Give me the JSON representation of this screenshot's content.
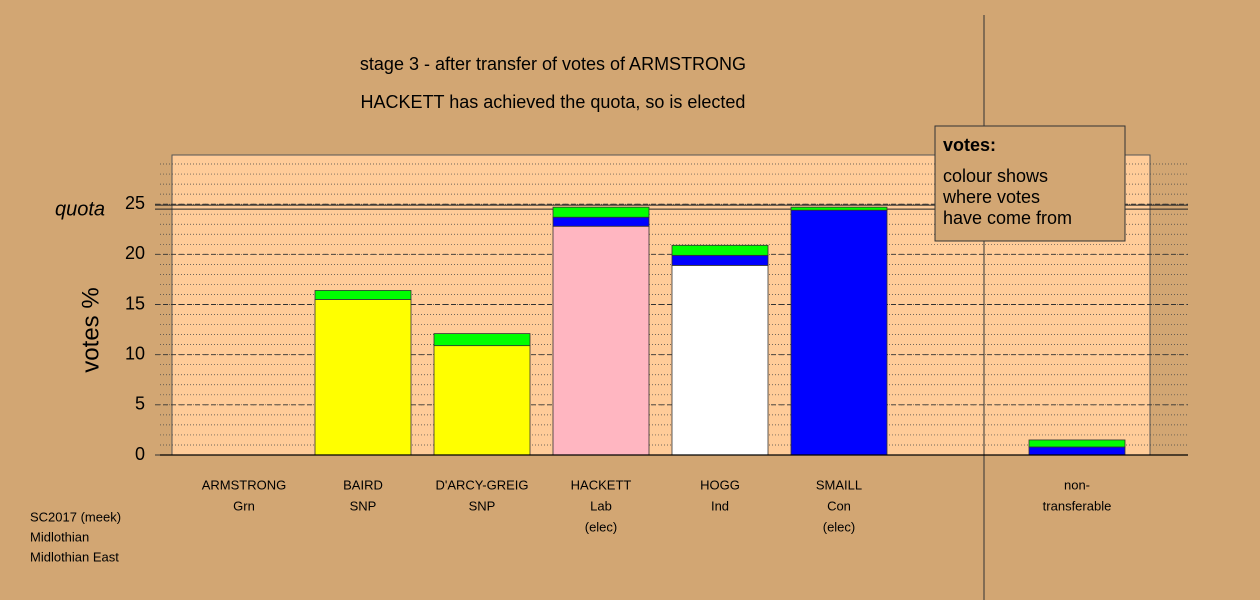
{
  "chart_data": {
    "type": "bar",
    "title": "stage 3 - after transfer of votes of ARMSTRONG",
    "subtitle": "HACKETT has achieved the quota, so is elected",
    "y_label": "votes %",
    "categories": [
      "ARMSTRONG",
      "BAIRD",
      "D'ARCY-GREIG",
      "HACKETT",
      "HOGG",
      "SMAILL",
      "non-"
    ],
    "parties": [
      "Grn",
      "SNP",
      "SNP",
      "Lab",
      "Ind",
      "Con",
      "transferable"
    ],
    "notes": [
      null,
      null,
      null,
      "(elec)",
      null,
      "(elec)",
      null
    ],
    "series": [
      {
        "colors": [
          "#00aa00",
          "#ffff00",
          "#ffff00",
          "#ffb6c1",
          "#ffffff",
          "#0000ff",
          "#0000ff"
        ],
        "values": [
          null,
          15.5,
          10.9,
          22.8,
          18.9,
          24.4,
          null
        ]
      },
      {
        "color": "#0000ff",
        "values": [
          null,
          null,
          null,
          0.9,
          1.0,
          null,
          0.8
        ]
      },
      {
        "color": "#00ff00",
        "values": [
          null,
          0.9,
          1.2,
          1.0,
          1.0,
          0.3,
          0.7
        ]
      }
    ],
    "quota": 24.7,
    "quota_label": "quota",
    "ylim": [
      0,
      30
    ],
    "yticks": [
      0,
      5,
      10,
      15,
      20,
      25
    ],
    "minor_grid_step": 1,
    "grid": true,
    "legend": {
      "title": "votes:",
      "lines": [
        "colour shows",
        "where votes",
        "have come from"
      ]
    },
    "footnote": [
      "SC2017 (meek)",
      "Midlothian",
      "Midlothian East"
    ]
  }
}
